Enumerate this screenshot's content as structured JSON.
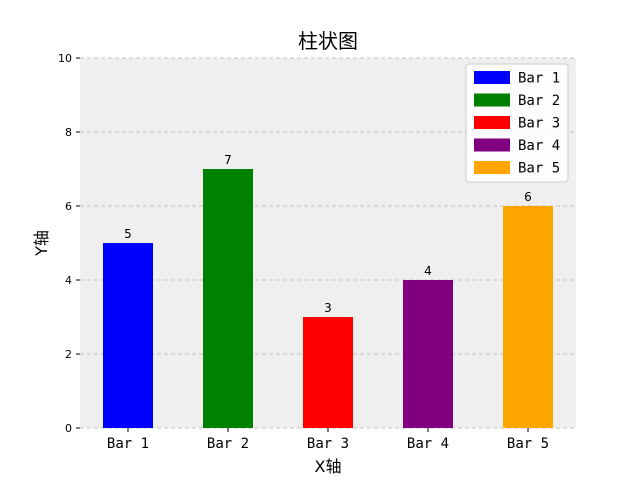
{
  "chart_data": {
    "type": "bar",
    "title": "柱状图",
    "xlabel": "X轴",
    "ylabel": "Y轴",
    "categories": [
      "Bar 1",
      "Bar 2",
      "Bar 3",
      "Bar 4",
      "Bar 5"
    ],
    "values": [
      5,
      7,
      3,
      4,
      6
    ],
    "colors": [
      "#0000ff",
      "#008000",
      "#ff0000",
      "#800080",
      "#ffa500"
    ],
    "data_labels": [
      "5",
      "7",
      "3",
      "4",
      "6"
    ],
    "ylim": [
      0,
      10
    ],
    "yticks": [
      0,
      2,
      4,
      6,
      8,
      10
    ],
    "grid": "y-dashed",
    "plot_background": "#efefef",
    "legend": {
      "position": "top-right",
      "entries": [
        "Bar 1",
        "Bar 2",
        "Bar 3",
        "Bar 4",
        "Bar 5"
      ]
    }
  }
}
